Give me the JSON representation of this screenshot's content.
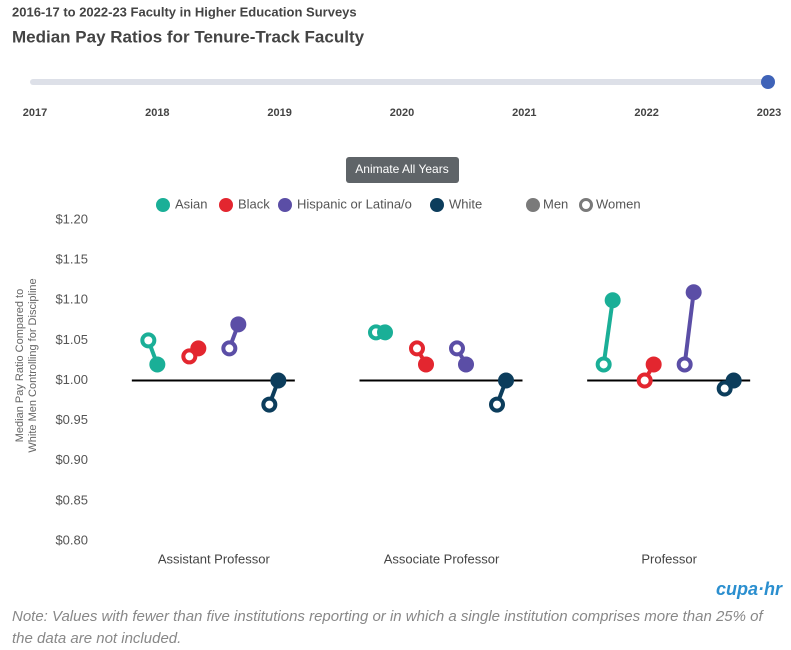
{
  "header": {
    "supertitle": "2016-17 to 2022-23 Faculty in Higher Education Surveys",
    "title": "Median Pay Ratios for Tenure-Track Faculty"
  },
  "slider": {
    "years": [
      "2017",
      "2018",
      "2019",
      "2020",
      "2021",
      "2022",
      "2023"
    ],
    "selected": 6
  },
  "button": "Animate All Years",
  "chart_data": {
    "type": "dumbbell",
    "ylabel": [
      "Median Pay Ratio Compared to",
      "White Men Controlling for Discipline"
    ],
    "categories": [
      "Assistant Professor",
      "Associate Professor",
      "Professor"
    ],
    "men_label": "Men",
    "women_label": "Women",
    "men_color": "#7a7a7a",
    "reference": 1,
    "ylim": [
      0.8,
      1.2
    ],
    "yticks": [
      {
        "value": 0.8,
        "label": "$0.80"
      },
      {
        "value": 0.85,
        "label": "$0.85"
      },
      {
        "value": 0.9,
        "label": "$0.90"
      },
      {
        "value": 0.95,
        "label": "$0.95"
      },
      {
        "value": 1.0,
        "label": "$1.00"
      },
      {
        "value": 1.05,
        "label": "$1.05"
      },
      {
        "value": 1.1,
        "label": "$1.10"
      },
      {
        "value": 1.15,
        "label": "$1.15"
      },
      {
        "value": 1.2,
        "label": "$1.20"
      }
    ],
    "series": [
      {
        "name": "Asian",
        "color": "#1aaf97",
        "men": [
          1.02,
          1.06,
          1.1
        ],
        "women": [
          1.05,
          1.06,
          1.02
        ]
      },
      {
        "name": "Black",
        "color": "#e3262f",
        "men": [
          1.04,
          1.02,
          1.02
        ],
        "women": [
          1.03,
          1.04,
          1.0
        ]
      },
      {
        "name": "Hispanic or Latina/o",
        "color": "#5b4ea6",
        "men": [
          1.07,
          1.02,
          1.11
        ],
        "women": [
          1.04,
          1.04,
          1.02
        ]
      },
      {
        "name": "White",
        "color": "#0c3d5c",
        "men": [
          1.0,
          1.0,
          1.0
        ],
        "women": [
          0.97,
          0.97,
          0.99
        ]
      }
    ]
  },
  "note": "Note: Values with fewer than five institutions reporting or in which a single institution comprises more than 25% of the data are not included.",
  "logo": "cupa·hr"
}
